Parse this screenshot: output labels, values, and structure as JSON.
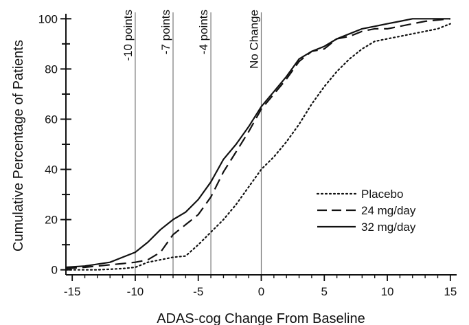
{
  "chart_data": {
    "type": "line",
    "title": "",
    "xlabel": "ADAS-cog Change From Baseline",
    "ylabel": "Cumulative Percentage of Patients",
    "xlim": [
      -15.5,
      15.5
    ],
    "ylim": [
      -2,
      102
    ],
    "x_ticks": [
      -15,
      -10,
      -5,
      0,
      5,
      10,
      15
    ],
    "y_ticks": [
      0,
      20,
      40,
      60,
      80,
      100
    ],
    "grid": false,
    "legend_position": "lower-right",
    "reference_lines": [
      {
        "x": -10,
        "label": "-10 points"
      },
      {
        "x": -7,
        "label": "-7 points"
      },
      {
        "x": -4,
        "label": "-4 points"
      },
      {
        "x": 0,
        "label": "No Change"
      }
    ],
    "series": [
      {
        "name": "Placebo",
        "style": "dotted",
        "points": [
          [
            -15.5,
            0
          ],
          [
            -13,
            0
          ],
          [
            -11,
            0.5
          ],
          [
            -10,
            1
          ],
          [
            -9,
            3
          ],
          [
            -8,
            4
          ],
          [
            -7,
            5
          ],
          [
            -6,
            5.5
          ],
          [
            -5,
            10
          ],
          [
            -4,
            15
          ],
          [
            -3,
            20
          ],
          [
            -2,
            26
          ],
          [
            -1,
            33
          ],
          [
            0,
            40
          ],
          [
            1,
            45
          ],
          [
            2,
            51
          ],
          [
            3,
            58
          ],
          [
            4,
            66
          ],
          [
            5,
            73
          ],
          [
            6,
            79
          ],
          [
            7,
            84
          ],
          [
            8,
            88
          ],
          [
            9,
            91
          ],
          [
            10,
            92
          ],
          [
            11,
            93
          ],
          [
            12,
            94
          ],
          [
            13,
            95
          ],
          [
            14,
            96
          ],
          [
            15,
            98
          ]
        ]
      },
      {
        "name": "24 mg/day",
        "style": "dashed",
        "points": [
          [
            -15.5,
            0.5
          ],
          [
            -14,
            1
          ],
          [
            -12,
            2
          ],
          [
            -11,
            2.5
          ],
          [
            -10,
            3
          ],
          [
            -9,
            4
          ],
          [
            -8,
            7
          ],
          [
            -7,
            14
          ],
          [
            -6,
            18
          ],
          [
            -5,
            22
          ],
          [
            -4,
            29
          ],
          [
            -3,
            39
          ],
          [
            -2,
            47
          ],
          [
            -1,
            55
          ],
          [
            0,
            64
          ],
          [
            1,
            70
          ],
          [
            2,
            76
          ],
          [
            3,
            83
          ],
          [
            4,
            87
          ],
          [
            5,
            88
          ],
          [
            6,
            92
          ],
          [
            7,
            93
          ],
          [
            8,
            95
          ],
          [
            9,
            96
          ],
          [
            10,
            96
          ],
          [
            11,
            97
          ],
          [
            12,
            98
          ],
          [
            13,
            99
          ],
          [
            15,
            100
          ]
        ]
      },
      {
        "name": "32 mg/day",
        "style": "solid",
        "points": [
          [
            -15.5,
            1
          ],
          [
            -14,
            1.5
          ],
          [
            -12,
            3
          ],
          [
            -11,
            5
          ],
          [
            -10,
            7
          ],
          [
            -9,
            11
          ],
          [
            -8,
            16
          ],
          [
            -7,
            20
          ],
          [
            -6,
            23
          ],
          [
            -5,
            28
          ],
          [
            -4,
            35
          ],
          [
            -3,
            44
          ],
          [
            -2,
            50
          ],
          [
            -1,
            57
          ],
          [
            0,
            65
          ],
          [
            1,
            71
          ],
          [
            2,
            77
          ],
          [
            3,
            84
          ],
          [
            4,
            87
          ],
          [
            5,
            89
          ],
          [
            6,
            92
          ],
          [
            7,
            94
          ],
          [
            8,
            96
          ],
          [
            9,
            97
          ],
          [
            10,
            98
          ],
          [
            11,
            99
          ],
          [
            12,
            100
          ],
          [
            13,
            100
          ],
          [
            15,
            100
          ]
        ]
      }
    ]
  }
}
